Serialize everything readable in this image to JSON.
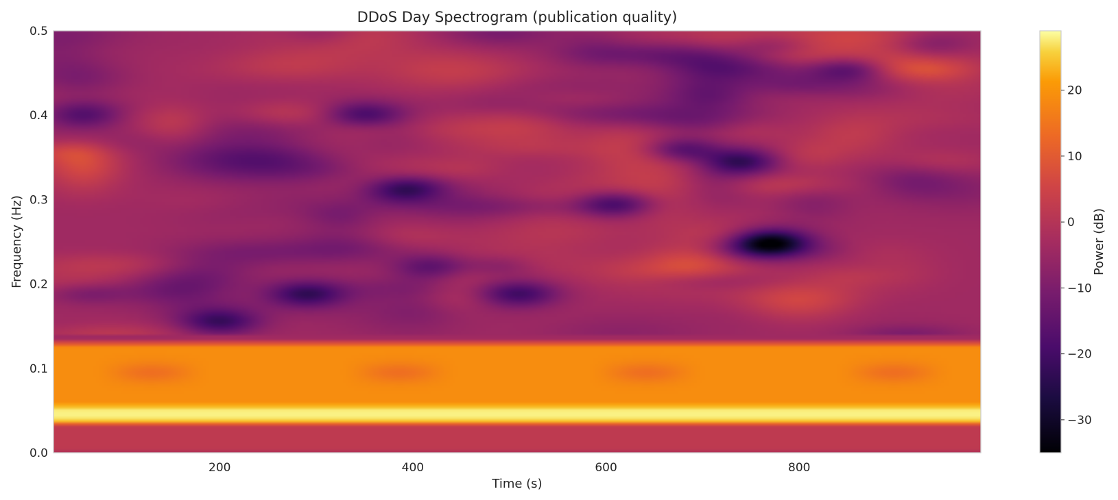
{
  "chart_data": {
    "type": "heatmap",
    "title": "DDoS Day Spectrogram (publication quality)",
    "xlabel": "Time (s)",
    "ylabel": "Frequency (Hz)",
    "colorbar_label": "Power (dB)",
    "colormap": "inferno",
    "xlim": [
      28,
      988
    ],
    "ylim": [
      0,
      0.5
    ],
    "clim": [
      -35,
      29
    ],
    "x_ticks": [
      200,
      400,
      600,
      800
    ],
    "y_ticks": [
      0.0,
      0.1,
      0.2,
      0.3,
      0.4,
      0.5
    ],
    "colorbar_ticks": [
      20,
      10,
      0,
      -10,
      -20,
      -30
    ],
    "grid": false,
    "power_bands": [
      {
        "f_low": 0.0,
        "f_high": 0.035,
        "level_db": 2
      },
      {
        "f_low": 0.035,
        "f_high": 0.055,
        "level_db": 28
      },
      {
        "f_low": 0.055,
        "f_high": 0.13,
        "level_db": 19
      },
      {
        "f_low": 0.13,
        "f_high": 0.5,
        "level_db": -4
      }
    ],
    "minima": [
      {
        "t": 770,
        "f": 0.25,
        "level_db": -33
      },
      {
        "t": 740,
        "f": 0.345,
        "level_db": -25
      },
      {
        "t": 680,
        "f": 0.36,
        "level_db": -22
      },
      {
        "t": 610,
        "f": 0.295,
        "level_db": -22
      },
      {
        "t": 350,
        "f": 0.4,
        "level_db": -20
      },
      {
        "t": 60,
        "f": 0.4,
        "level_db": -18
      },
      {
        "t": 290,
        "f": 0.188,
        "level_db": -22
      },
      {
        "t": 510,
        "f": 0.188,
        "level_db": -20
      },
      {
        "t": 200,
        "f": 0.155,
        "level_db": -20
      },
      {
        "t": 850,
        "f": 0.455,
        "level_db": -20
      },
      {
        "t": 390,
        "f": 0.31,
        "level_db": -18
      },
      {
        "t": 420,
        "f": 0.22,
        "level_db": -18
      }
    ]
  }
}
